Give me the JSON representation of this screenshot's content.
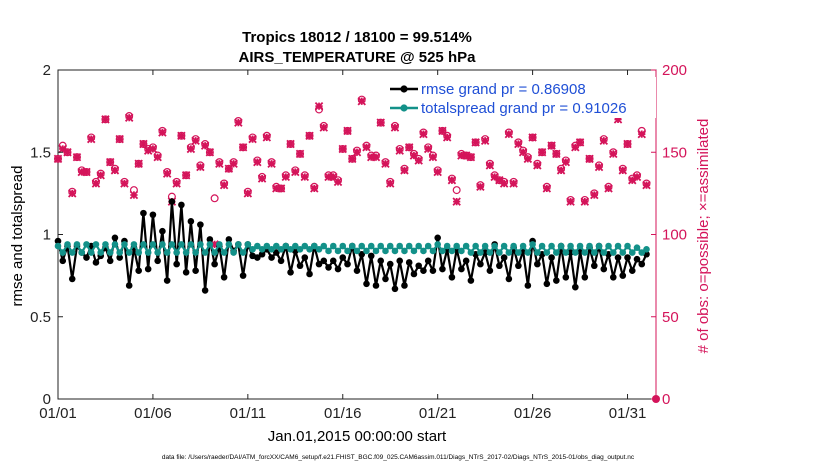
{
  "chart_data": {
    "type": "line",
    "title": [
      "Tropics 18012 / 18100 = 99.514%",
      "AIRS_TEMPERATURE @ 525 hPa"
    ],
    "xlabel": "Jan.01,2015 00:00:00 start",
    "ylabel_left": "rmse and totalspread",
    "ylabel_right": "# of obs: o=possible; ×=assimilated",
    "xlim": [
      0,
      31.5
    ],
    "ylim_left": [
      0,
      2
    ],
    "ylim_right": [
      0,
      200
    ],
    "x_ticks": [
      0,
      5,
      10,
      15,
      20,
      25,
      30
    ],
    "x_tick_labels": [
      "01/01",
      "01/06",
      "01/11",
      "01/16",
      "01/21",
      "01/26",
      "01/31"
    ],
    "y_ticks_left": [
      0,
      0.5,
      1,
      1.5,
      2
    ],
    "y_tick_labels_left": [
      "0",
      "0.5",
      "1",
      "1.5",
      "2"
    ],
    "y_ticks_right": [
      0,
      50,
      100,
      150,
      200
    ],
    "y_tick_labels_right": [
      "0",
      "50",
      "100",
      "150",
      "200"
    ],
    "grid": false,
    "legend_position": "top-right",
    "colors": {
      "rmse": "#000000",
      "totalspread": "#139189",
      "obs": "#d4145a",
      "legend_text": "#1f4fd6",
      "right_axis": "#d4145a"
    },
    "series": [
      {
        "name": "rmse grand pr = 0.86908",
        "axis": "left",
        "x": [
          0.0,
          0.25,
          0.5,
          0.75,
          1.0,
          1.25,
          1.5,
          1.75,
          2.0,
          2.25,
          2.5,
          2.75,
          3.0,
          3.25,
          3.5,
          3.75,
          4.0,
          4.25,
          4.5,
          4.75,
          5.0,
          5.25,
          5.5,
          5.75,
          6.0,
          6.25,
          6.5,
          6.75,
          7.0,
          7.25,
          7.5,
          7.75,
          8.0,
          8.25,
          8.5,
          8.75,
          9.0,
          9.25,
          9.5,
          9.75,
          10.0,
          10.25,
          10.5,
          10.75,
          11.0,
          11.25,
          11.5,
          11.75,
          12.0,
          12.25,
          12.5,
          12.75,
          13.0,
          13.25,
          13.5,
          13.75,
          14.0,
          14.25,
          14.5,
          14.75,
          15.0,
          15.25,
          15.5,
          15.75,
          16.0,
          16.25,
          16.5,
          16.75,
          17.0,
          17.25,
          17.5,
          17.75,
          18.0,
          18.25,
          18.5,
          18.75,
          19.0,
          19.25,
          19.5,
          19.75,
          20.0,
          20.25,
          20.5,
          20.75,
          21.0,
          21.25,
          21.5,
          21.75,
          22.0,
          22.25,
          22.5,
          22.75,
          23.0,
          23.25,
          23.5,
          23.75,
          24.0,
          24.25,
          24.5,
          24.75,
          25.0,
          25.25,
          25.5,
          25.75,
          26.0,
          26.25,
          26.5,
          26.75,
          27.0,
          27.25,
          27.5,
          27.75,
          28.0,
          28.25,
          28.5,
          28.75,
          29.0,
          29.25,
          29.5,
          29.75,
          30.0,
          30.25,
          30.5,
          30.75,
          31.0
        ],
        "values": [
          0.96,
          0.84,
          0.93,
          0.73,
          0.93,
          0.89,
          0.86,
          0.93,
          0.83,
          0.87,
          0.92,
          0.84,
          0.98,
          0.86,
          0.96,
          0.69,
          0.92,
          0.78,
          1.13,
          0.79,
          1.12,
          0.84,
          1.02,
          0.72,
          1.2,
          0.82,
          1.18,
          0.77,
          1.08,
          0.78,
          1.06,
          0.66,
          0.97,
          0.82,
          0.93,
          0.74,
          0.97,
          0.9,
          0.94,
          0.75,
          0.94,
          0.87,
          0.86,
          0.88,
          0.91,
          0.86,
          0.89,
          0.84,
          0.93,
          0.77,
          0.9,
          0.81,
          0.86,
          0.76,
          0.93,
          0.82,
          0.84,
          0.8,
          0.84,
          0.79,
          0.86,
          0.82,
          0.93,
          0.78,
          0.88,
          0.7,
          0.87,
          0.69,
          0.84,
          0.73,
          0.82,
          0.67,
          0.84,
          0.69,
          0.83,
          0.76,
          0.81,
          0.78,
          0.84,
          0.78,
          0.98,
          0.79,
          0.91,
          0.74,
          0.91,
          0.79,
          0.84,
          0.72,
          0.88,
          0.82,
          0.89,
          0.78,
          0.94,
          0.81,
          0.86,
          0.73,
          0.92,
          0.81,
          0.9,
          0.69,
          0.96,
          0.82,
          0.88,
          0.7,
          0.86,
          0.72,
          0.93,
          0.74,
          0.89,
          0.68,
          0.9,
          0.74,
          0.92,
          0.81,
          0.93,
          0.79,
          0.88,
          0.74,
          0.86,
          0.75,
          0.86,
          0.78,
          0.85,
          0.82,
          0.88
        ]
      },
      {
        "name": "totalspread grand pr = 0.91026",
        "axis": "left",
        "x": [
          0.0,
          0.25,
          0.5,
          0.75,
          1.0,
          1.25,
          1.5,
          1.75,
          2.0,
          2.25,
          2.5,
          2.75,
          3.0,
          3.25,
          3.5,
          3.75,
          4.0,
          4.25,
          4.5,
          4.75,
          5.0,
          5.25,
          5.5,
          5.75,
          6.0,
          6.25,
          6.5,
          6.75,
          7.0,
          7.25,
          7.5,
          7.75,
          8.0,
          8.25,
          8.5,
          8.75,
          9.0,
          9.25,
          9.5,
          9.75,
          10.0,
          10.25,
          10.5,
          10.75,
          11.0,
          11.25,
          11.5,
          11.75,
          12.0,
          12.25,
          12.5,
          12.75,
          13.0,
          13.25,
          13.5,
          13.75,
          14.0,
          14.25,
          14.5,
          14.75,
          15.0,
          15.25,
          15.5,
          15.75,
          16.0,
          16.25,
          16.5,
          16.75,
          17.0,
          17.25,
          17.5,
          17.75,
          18.0,
          18.25,
          18.5,
          18.75,
          19.0,
          19.25,
          19.5,
          19.75,
          20.0,
          20.25,
          20.5,
          20.75,
          21.0,
          21.25,
          21.5,
          21.75,
          22.0,
          22.25,
          22.5,
          22.75,
          23.0,
          23.25,
          23.5,
          23.75,
          24.0,
          24.25,
          24.5,
          24.75,
          25.0,
          25.25,
          25.5,
          25.75,
          26.0,
          26.25,
          26.5,
          26.75,
          27.0,
          27.25,
          27.5,
          27.75,
          28.0,
          28.25,
          28.5,
          28.75,
          29.0,
          29.25,
          29.5,
          29.75,
          30.0,
          30.25,
          30.5,
          30.75,
          31.0
        ],
        "values": [
          0.93,
          0.89,
          0.94,
          0.89,
          0.94,
          0.89,
          0.94,
          0.89,
          0.94,
          0.89,
          0.94,
          0.89,
          0.94,
          0.89,
          0.94,
          0.89,
          0.94,
          0.89,
          0.94,
          0.89,
          0.94,
          0.89,
          0.94,
          0.89,
          0.94,
          0.89,
          0.94,
          0.89,
          0.94,
          0.89,
          0.94,
          0.89,
          0.94,
          0.89,
          0.94,
          0.89,
          0.94,
          0.89,
          0.94,
          0.89,
          0.94,
          0.91,
          0.93,
          0.91,
          0.93,
          0.91,
          0.93,
          0.91,
          0.93,
          0.91,
          0.93,
          0.91,
          0.93,
          0.91,
          0.93,
          0.91,
          0.93,
          0.9,
          0.93,
          0.9,
          0.93,
          0.9,
          0.93,
          0.9,
          0.93,
          0.9,
          0.93,
          0.9,
          0.93,
          0.9,
          0.93,
          0.9,
          0.93,
          0.9,
          0.93,
          0.9,
          0.93,
          0.9,
          0.93,
          0.9,
          0.94,
          0.9,
          0.93,
          0.9,
          0.93,
          0.9,
          0.93,
          0.89,
          0.93,
          0.89,
          0.93,
          0.89,
          0.93,
          0.89,
          0.93,
          0.89,
          0.93,
          0.89,
          0.93,
          0.89,
          0.94,
          0.89,
          0.93,
          0.89,
          0.93,
          0.89,
          0.93,
          0.89,
          0.93,
          0.89,
          0.93,
          0.89,
          0.93,
          0.89,
          0.93,
          0.89,
          0.93,
          0.89,
          0.93,
          0.89,
          0.93,
          0.89,
          0.92,
          0.89,
          0.91
        ]
      },
      {
        "name": "# of obs possible",
        "axis": "right",
        "marker": "o",
        "x": [
          0.0,
          0.25,
          0.5,
          0.75,
          1.0,
          1.25,
          1.5,
          1.75,
          2.0,
          2.25,
          2.5,
          2.75,
          3.0,
          3.25,
          3.5,
          3.75,
          4.0,
          4.25,
          4.5,
          4.75,
          5.0,
          5.25,
          5.5,
          5.75,
          6.0,
          6.25,
          6.5,
          6.75,
          7.0,
          7.25,
          7.5,
          7.75,
          8.0,
          8.25,
          8.5,
          8.75,
          9.0,
          9.25,
          9.5,
          9.75,
          10.0,
          10.25,
          10.5,
          10.75,
          11.0,
          11.25,
          11.5,
          11.75,
          12.0,
          12.25,
          12.5,
          12.75,
          13.0,
          13.25,
          13.5,
          13.75,
          14.0,
          14.25,
          14.5,
          14.75,
          15.0,
          15.25,
          15.5,
          15.75,
          16.0,
          16.25,
          16.5,
          16.75,
          17.0,
          17.25,
          17.5,
          17.75,
          18.0,
          18.25,
          18.5,
          18.75,
          19.0,
          19.25,
          19.5,
          19.75,
          20.0,
          20.25,
          20.5,
          20.75,
          21.0,
          21.25,
          21.5,
          21.75,
          22.0,
          22.25,
          22.5,
          22.75,
          23.0,
          23.25,
          23.5,
          23.75,
          24.0,
          24.25,
          24.5,
          24.75,
          25.0,
          25.25,
          25.5,
          25.75,
          26.0,
          26.25,
          26.5,
          26.75,
          27.0,
          27.25,
          27.5,
          27.75,
          28.0,
          28.25,
          28.5,
          28.75,
          29.0,
          29.25,
          29.5,
          29.75,
          30.0,
          30.25,
          30.5,
          30.75,
          31.0
        ],
        "values": [
          146,
          154,
          150,
          126,
          147,
          139,
          138,
          159,
          132,
          137,
          170,
          144,
          140,
          158,
          132,
          172,
          127,
          143,
          155,
          152,
          153,
          148,
          163,
          138,
          123,
          132,
          160,
          136,
          153,
          158,
          142,
          155,
          150,
          122,
          144,
          131,
          140,
          144,
          169,
          153,
          126,
          159,
          145,
          135,
          160,
          144,
          129,
          128,
          136,
          155,
          139,
          149,
          136,
          160,
          129,
          176,
          166,
          136,
          136,
          133,
          152,
          163,
          146,
          151,
          182,
          154,
          148,
          148,
          168,
          144,
          132,
          166,
          152,
          140,
          153,
          149,
          146,
          162,
          153,
          148,
          139,
          163,
          160,
          134,
          127,
          149,
          148,
          147,
          156,
          130,
          158,
          143,
          136,
          133,
          132,
          162,
          132,
          156,
          151,
          147,
          159,
          143,
          150,
          129,
          154,
          149,
          140,
          145,
          121,
          154,
          156,
          121,
          146,
          125,
          142,
          158,
          129,
          150,
          172,
          140,
          155,
          134,
          136,
          163,
          131
        ],
        "label": "o=possible"
      },
      {
        "name": "# of obs assimilated",
        "axis": "right",
        "marker": "x",
        "x": [
          0.0,
          0.25,
          0.5,
          0.75,
          1.0,
          1.25,
          1.5,
          1.75,
          2.0,
          2.25,
          2.5,
          2.75,
          3.0,
          3.25,
          3.5,
          3.75,
          4.0,
          4.25,
          4.5,
          4.75,
          5.0,
          5.25,
          5.5,
          5.75,
          6.0,
          6.25,
          6.5,
          6.75,
          7.0,
          7.25,
          7.5,
          7.75,
          8.0,
          8.25,
          8.5,
          8.75,
          9.0,
          9.25,
          9.5,
          9.75,
          10.0,
          10.25,
          10.5,
          10.75,
          11.0,
          11.25,
          11.5,
          11.75,
          12.0,
          12.25,
          12.5,
          12.75,
          13.0,
          13.25,
          13.5,
          13.75,
          14.0,
          14.25,
          14.5,
          14.75,
          15.0,
          15.25,
          15.5,
          15.75,
          16.0,
          16.25,
          16.5,
          16.75,
          17.0,
          17.25,
          17.5,
          17.75,
          18.0,
          18.25,
          18.5,
          18.75,
          19.0,
          19.25,
          19.5,
          19.75,
          20.0,
          20.25,
          20.5,
          20.75,
          21.0,
          21.25,
          21.5,
          21.75,
          22.0,
          22.25,
          22.5,
          22.75,
          23.0,
          23.25,
          23.5,
          23.75,
          24.0,
          24.25,
          24.5,
          24.75,
          25.0,
          25.25,
          25.5,
          25.75,
          26.0,
          26.25,
          26.5,
          26.75,
          27.0,
          27.25,
          27.5,
          27.75,
          28.0,
          28.25,
          28.5,
          28.75,
          29.0,
          29.25,
          29.5,
          29.75,
          30.0,
          30.25,
          30.5,
          30.75,
          31.0
        ],
        "values": [
          146,
          152,
          150,
          125,
          147,
          138,
          138,
          158,
          131,
          136,
          170,
          144,
          139,
          158,
          131,
          171,
          124,
          143,
          155,
          151,
          152,
          147,
          162,
          137,
          120,
          131,
          160,
          136,
          152,
          157,
          141,
          154,
          150,
          94,
          143,
          130,
          140,
          143,
          168,
          153,
          125,
          158,
          144,
          134,
          159,
          143,
          128,
          128,
          135,
          155,
          138,
          149,
          135,
          160,
          128,
          178,
          165,
          135,
          135,
          132,
          152,
          163,
          146,
          150,
          181,
          153,
          147,
          147,
          168,
          143,
          131,
          165,
          151,
          139,
          153,
          148,
          145,
          161,
          152,
          147,
          138,
          163,
          159,
          133,
          120,
          148,
          148,
          147,
          156,
          129,
          157,
          142,
          135,
          133,
          131,
          161,
          131,
          155,
          150,
          146,
          159,
          142,
          150,
          128,
          154,
          149,
          139,
          144,
          120,
          153,
          156,
          120,
          146,
          124,
          141,
          157,
          128,
          149,
          170,
          139,
          155,
          133,
          135,
          161,
          130
        ],
        "label": "×=assimilated"
      }
    ],
    "footer": "data file: /Users/raeder/DAI/ATM_forcXX/CAM6_setup/f.e21.FHIST_BGC.f09_025.CAM6assim.011/Diags_NTrS_2017-02/Diags_NTrS_2015-01/obs_diag_output.nc"
  }
}
